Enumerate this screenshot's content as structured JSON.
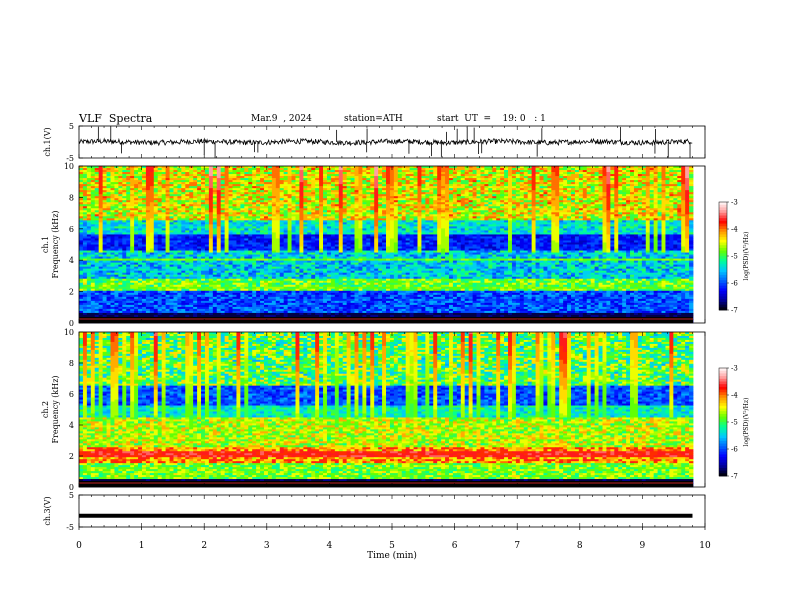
{
  "header": {
    "title": "VLF  Spectra",
    "date": "Mar.9  , 2024",
    "station": "station=ATH",
    "start": "start  UT  =    19: 0   : 1"
  },
  "chart_data": [
    {
      "type": "line",
      "panel": "waveform-ch1",
      "ylabel": "ch.1(V)",
      "ylim": [
        -5,
        5
      ],
      "yticks": [
        "5",
        "-5"
      ],
      "xlim": [
        0,
        10
      ],
      "description_of_signal": "noisy trace near 0 V with spikes",
      "color": "#000000"
    },
    {
      "type": "heatmap",
      "panel": "spectrogram-ch1",
      "ylabel": [
        "ch.1",
        "Frequency  (kHz)"
      ],
      "ylim": [
        0,
        10
      ],
      "yticks": [
        "0",
        "2",
        "4",
        "6",
        "8",
        "10"
      ],
      "xlim": [
        0,
        9.8
      ],
      "colorbar_label": "log(PSD)(V²/Hz)",
      "colorbar_ticks": [
        "-3",
        "-4",
        "-5",
        "-6",
        "-7"
      ],
      "colorbar_range": [
        -7,
        -3
      ]
    },
    {
      "type": "heatmap",
      "panel": "spectrogram-ch2",
      "ylabel": [
        "ch.2",
        "Frequency  (kHz)"
      ],
      "ylim": [
        0,
        10
      ],
      "yticks": [
        "0",
        "2",
        "4",
        "6",
        "8",
        "10"
      ],
      "xlim": [
        0,
        9.8
      ],
      "colorbar_label": "log(PSD)(V²/Hz)",
      "colorbar_ticks": [
        "-3",
        "-4",
        "-5",
        "-6",
        "-7"
      ],
      "colorbar_range": [
        -7,
        -3
      ]
    },
    {
      "type": "line",
      "panel": "waveform-ch3",
      "ylabel": "ch.3(V)",
      "ylim": [
        -5,
        5
      ],
      "yticks": [
        "5",
        "-5"
      ],
      "xlim": [
        0,
        10
      ],
      "constant_value": -1.5,
      "color": "#000000"
    }
  ],
  "xaxis": {
    "label": "Time  (min)",
    "ticks": [
      "0",
      "1",
      "2",
      "3",
      "4",
      "5",
      "6",
      "7",
      "8",
      "9",
      "10"
    ]
  },
  "colors": {
    "background": "#ffffff",
    "axis": "#000000",
    "colormap": [
      "#000000",
      "#00009a",
      "#0000ff",
      "#0064ff",
      "#00c8ff",
      "#00ff96",
      "#64ff00",
      "#ffff00",
      "#ff9600",
      "#ff0000",
      "#ff9a9a",
      "#ffffff"
    ]
  }
}
